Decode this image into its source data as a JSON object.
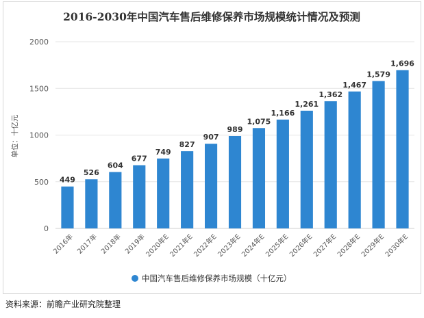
{
  "source_note": "资料来源：前瞻产业研究院整理",
  "chart_data": {
    "type": "bar",
    "title": "2016-2030年中国汽车售后维修保养市场规模统计情况及预测",
    "ylabel": "单位：十亿元",
    "xlabel": "",
    "categories": [
      "2016年",
      "2017年",
      "2018年",
      "2019年",
      "2020年E",
      "2021年E",
      "2022年E",
      "2023年E",
      "2024年E",
      "2025年E",
      "2026年E",
      "2027年E",
      "2028年E",
      "2029年E",
      "2030年E"
    ],
    "series": [
      {
        "name": "中国汽车售后维修保养市场规模（十亿元）",
        "values": [
          449,
          526,
          604,
          677,
          749,
          827,
          907,
          989,
          1075,
          1166,
          1261,
          1362,
          1467,
          1579,
          1696
        ],
        "data_labels": [
          "449",
          "526",
          "604",
          "677",
          "749",
          "827",
          "907",
          "989",
          "1,075",
          "1,166",
          "1,261",
          "1,362",
          "1,467",
          "1,579",
          "1,696"
        ]
      }
    ],
    "ylim": [
      0,
      2000
    ],
    "yticks": [
      0,
      500,
      1000,
      1500,
      2000
    ],
    "grid": true,
    "legend_position": "bottom",
    "colors": {
      "bar": "#2e86d1",
      "grid": "#e4e4e4",
      "axis_text": "#555555",
      "label_text": "#333333",
      "title_text": "#333333"
    }
  }
}
